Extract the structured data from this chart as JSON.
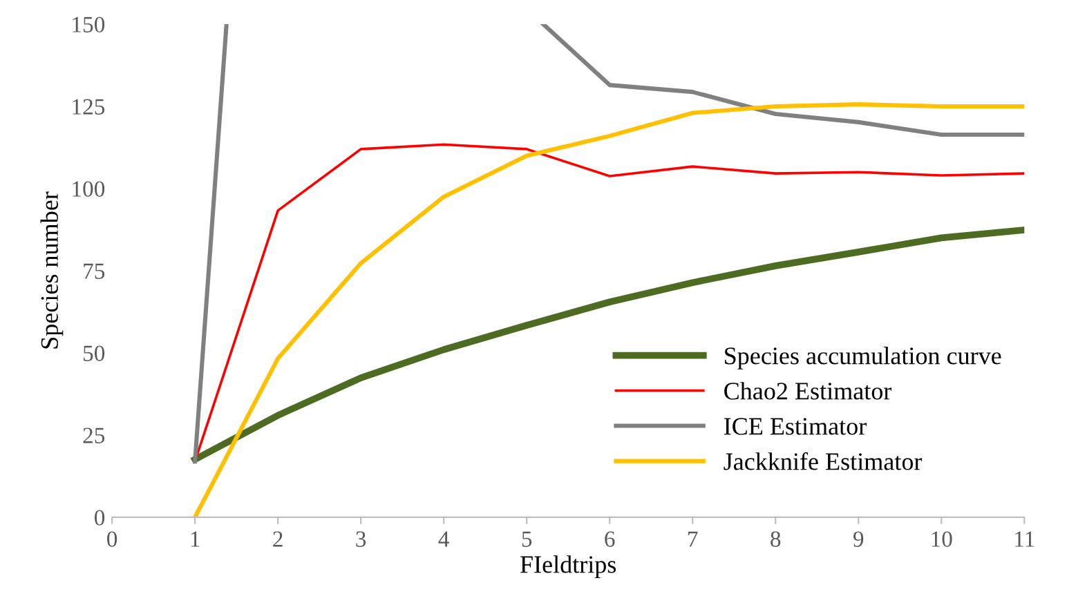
{
  "chart_data": {
    "type": "line",
    "xlabel": "FIeldtrips",
    "ylabel": "Species number",
    "x": [
      1,
      2,
      3,
      4,
      5,
      6,
      7,
      8,
      9,
      10,
      11
    ],
    "series": [
      {
        "name": "Species accumulation curve",
        "color": "#4e6b22",
        "values": [
          17.6,
          31,
          42.4,
          51,
          58.4,
          65.5,
          71.4,
          76.5,
          80.7,
          85,
          87.4
        ]
      },
      {
        "name": "Chao2 Estimator",
        "color": "#ff0000",
        "values": [
          17,
          93.3,
          112,
          113.4,
          112,
          103.8,
          106.7,
          104.6,
          105,
          104,
          104.6
        ]
      },
      {
        "name": "ICE Estimator",
        "color": "#808080",
        "x": [
          1,
          1.38,
          3,
          5.2,
          6,
          7,
          8,
          9,
          10,
          11
        ],
        "values": [
          17,
          150,
          null,
          150,
          131.5,
          129.4,
          122.7,
          120.2,
          116.4,
          116.4
        ]
      },
      {
        "name": "Jackknife Estimator",
        "color": "#ffc000",
        "values": [
          0,
          48.3,
          77.3,
          97.5,
          110,
          116,
          123,
          125,
          125.6,
          125,
          125
        ]
      }
    ],
    "xlim": [
      0,
      11
    ],
    "xticks": [
      0,
      1,
      2,
      3,
      4,
      5,
      6,
      7,
      8,
      9,
      10,
      11
    ],
    "ylim": [
      0,
      150
    ],
    "yticks": [
      0,
      25,
      50,
      75,
      100,
      125,
      150
    ],
    "grid": false,
    "legend": "bottom right",
    "marker": "none",
    "line_style": "solid"
  }
}
